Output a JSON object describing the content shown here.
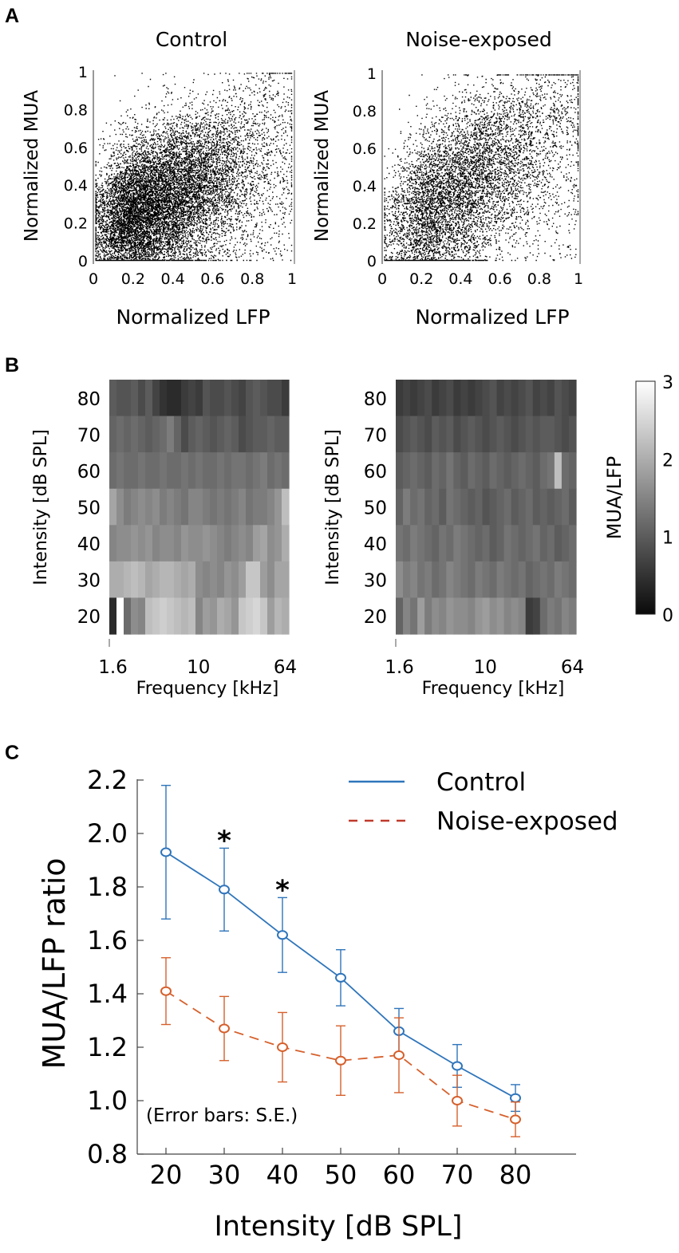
{
  "panels": {
    "a": "A",
    "b": "B",
    "c": "C"
  },
  "colors": {
    "control": "#2f75bb",
    "noise": "#d6602c",
    "noise_dashed": "#c0392b",
    "points": "#000000"
  },
  "chart_data": [
    {
      "type": "scatter",
      "title": "Control",
      "xlabel": "Normalized LFP",
      "ylabel": "Normalized MUA",
      "xlim": [
        0,
        1
      ],
      "ylim": [
        0,
        1
      ],
      "xticks": [
        "0",
        "0.2",
        "0.4",
        "0.6",
        "0.8",
        "1"
      ],
      "yticks": [
        "0",
        "0.2",
        "0.4",
        "0.6",
        "0.8",
        "1"
      ],
      "distribution": {
        "n": 12000,
        "center": [
          0.22,
          0.25
        ],
        "spread": [
          0.18,
          0.2
        ],
        "trend": 0.35
      }
    },
    {
      "type": "scatter",
      "title": "Noise-exposed",
      "xlabel": "Normalized LFP",
      "ylabel": "Normalized MUA",
      "xlim": [
        0,
        1
      ],
      "ylim": [
        0,
        1
      ],
      "xticks": [
        "0",
        "0.2",
        "0.4",
        "0.6",
        "0.8",
        "1"
      ],
      "yticks": [
        "0",
        "0.2",
        "0.4",
        "0.6",
        "0.8",
        "1"
      ],
      "distribution": {
        "n": 7000,
        "center": [
          0.28,
          0.32
        ],
        "spread": [
          0.2,
          0.22
        ],
        "trend": 0.5
      }
    },
    {
      "type": "heatmap",
      "title": "Control",
      "xlabel": "Frequency [kHz]",
      "ylabel": "Intensity [dB SPL]",
      "xticks": [
        "1.6",
        "10",
        "64"
      ],
      "yticks": [
        "80",
        "70",
        "60",
        "50",
        "40",
        "30",
        "20"
      ],
      "rows_top_to_bottom": [
        [
          1.0,
          0.9,
          0.9,
          1.0,
          0.8,
          1.0,
          0.7,
          0.5,
          0.4,
          0.4,
          0.6,
          0.7,
          0.6,
          0.9,
          0.8,
          0.8,
          0.9,
          0.8,
          0.7,
          0.9,
          1.0,
          0.9,
          0.8,
          0.8,
          0.6
        ],
        [
          1.1,
          1.2,
          1.1,
          1.2,
          1.1,
          1.0,
          1.1,
          1.2,
          1.4,
          1.1,
          0.8,
          1.0,
          1.1,
          1.0,
          0.9,
          1.0,
          1.1,
          1.0,
          0.8,
          0.9,
          1.0,
          1.0,
          1.1,
          1.0,
          1.0
        ],
        [
          1.2,
          1.3,
          1.2,
          1.2,
          1.3,
          1.2,
          1.2,
          1.3,
          1.2,
          1.2,
          1.3,
          1.2,
          1.3,
          1.2,
          1.2,
          1.3,
          1.2,
          1.3,
          1.3,
          1.2,
          1.3,
          1.4,
          1.2,
          1.3,
          1.2
        ],
        [
          1.9,
          1.6,
          1.4,
          1.5,
          1.6,
          1.5,
          1.6,
          1.4,
          1.5,
          1.4,
          1.3,
          1.5,
          1.5,
          1.4,
          1.3,
          1.4,
          1.3,
          1.4,
          1.5,
          1.3,
          1.4,
          1.4,
          1.5,
          1.7,
          2.2
        ],
        [
          1.5,
          1.6,
          1.6,
          1.7,
          1.6,
          1.7,
          1.5,
          1.6,
          1.6,
          1.5,
          1.7,
          1.6,
          1.6,
          1.7,
          1.6,
          1.5,
          1.4,
          1.5,
          1.6,
          1.5,
          1.8,
          1.9,
          1.6,
          1.7,
          2.0
        ],
        [
          2.0,
          2.0,
          2.1,
          2.2,
          2.1,
          1.9,
          2.0,
          2.1,
          2.1,
          2.0,
          1.9,
          2.0,
          1.6,
          1.5,
          1.6,
          1.5,
          1.7,
          1.6,
          1.8,
          2.3,
          2.3,
          1.8,
          1.6,
          1.9,
          1.9
        ],
        [
          0.4,
          3.0,
          1.2,
          1.6,
          1.5,
          2.2,
          2.3,
          2.4,
          2.3,
          2.2,
          2.1,
          2.2,
          1.5,
          1.8,
          1.7,
          2.0,
          1.9,
          1.7,
          2.3,
          2.4,
          2.5,
          2.3,
          1.8,
          2.1,
          2.0
        ]
      ]
    },
    {
      "type": "heatmap",
      "title": "Noise-exposed",
      "xlabel": "Frequency [kHz]",
      "ylabel": "Intensity [dB SPL]",
      "xticks": [
        "1.6",
        "10",
        "64"
      ],
      "yticks": [
        "80",
        "70",
        "60",
        "50",
        "40",
        "30",
        "20"
      ],
      "rows_top_to_bottom": [
        [
          0.6,
          0.7,
          0.6,
          0.7,
          0.8,
          0.6,
          0.7,
          0.8,
          0.6,
          0.7,
          0.6,
          0.7,
          0.8,
          0.9,
          0.7,
          0.8,
          0.7,
          0.8,
          0.9,
          0.7,
          0.8,
          0.7,
          0.9,
          0.8,
          0.7
        ],
        [
          0.8,
          0.9,
          1.0,
          0.9,
          0.8,
          1.0,
          0.9,
          1.0,
          0.8,
          0.9,
          1.0,
          0.9,
          0.8,
          0.9,
          1.0,
          0.9,
          0.8,
          0.9,
          1.0,
          0.9,
          1.0,
          1.0,
          0.9,
          0.8,
          0.9
        ],
        [
          1.0,
          1.1,
          1.2,
          1.1,
          1.0,
          1.2,
          1.1,
          1.3,
          1.1,
          1.0,
          1.2,
          1.1,
          1.0,
          1.2,
          1.1,
          1.0,
          1.1,
          1.2,
          1.1,
          1.0,
          1.2,
          1.3,
          2.2,
          1.2,
          1.1
        ],
        [
          1.1,
          1.4,
          1.2,
          1.3,
          1.1,
          1.2,
          1.0,
          1.3,
          1.2,
          1.1,
          1.0,
          1.1,
          0.9,
          1.0,
          1.1,
          1.2,
          1.0,
          1.1,
          1.2,
          1.0,
          1.1,
          1.0,
          1.1,
          1.2,
          1.0
        ],
        [
          1.3,
          1.2,
          1.4,
          1.3,
          1.2,
          1.1,
          1.3,
          1.2,
          1.4,
          1.3,
          1.2,
          1.1,
          1.2,
          1.0,
          1.1,
          1.3,
          1.2,
          1.1,
          1.2,
          1.3,
          1.1,
          1.2,
          1.0,
          1.1,
          1.2
        ],
        [
          1.6,
          1.4,
          1.5,
          1.3,
          1.4,
          1.2,
          1.3,
          1.5,
          1.4,
          1.3,
          1.2,
          1.4,
          1.3,
          1.2,
          1.4,
          1.3,
          1.2,
          1.3,
          1.1,
          1.2,
          1.3,
          1.2,
          1.4,
          1.3,
          1.2
        ],
        [
          1.1,
          1.5,
          1.3,
          1.8,
          1.4,
          1.6,
          1.5,
          1.7,
          1.6,
          1.6,
          1.5,
          1.7,
          1.8,
          1.6,
          1.7,
          1.5,
          1.6,
          1.5,
          0.6,
          0.7,
          1.2,
          1.4,
          1.3,
          1.5,
          1.4
        ]
      ]
    },
    {
      "type": "colorbar",
      "label": "MUA/LFP",
      "range": [
        0,
        3
      ],
      "ticks": [
        "0",
        "1",
        "2",
        "3"
      ]
    },
    {
      "type": "line",
      "xlabel": "Intensity [dB SPL]",
      "ylabel": "MUA/LFP ratio",
      "ylim": [
        0.8,
        2.2
      ],
      "x": [
        20,
        30,
        40,
        50,
        60,
        70,
        80
      ],
      "xticks": [
        "20",
        "30",
        "40",
        "50",
        "60",
        "70",
        "80"
      ],
      "yticks": [
        "0.8",
        "1.0",
        "1.2",
        "1.4",
        "1.6",
        "1.8",
        "2.0",
        "2.2"
      ],
      "series": [
        {
          "name": "Control",
          "values": [
            1.93,
            1.79,
            1.62,
            1.46,
            1.26,
            1.13,
            1.01
          ],
          "se": [
            0.25,
            0.155,
            0.14,
            0.105,
            0.085,
            0.08,
            0.05
          ],
          "style": "solid"
        },
        {
          "name": "Noise-exposed",
          "values": [
            1.41,
            1.27,
            1.2,
            1.15,
            1.17,
            1.0,
            0.93
          ],
          "se": [
            0.125,
            0.12,
            0.13,
            0.13,
            0.14,
            0.095,
            0.065
          ],
          "style": "dashed"
        }
      ],
      "significance": [
        {
          "x": 30,
          "label": "*"
        },
        {
          "x": 40,
          "label": "*"
        }
      ],
      "note": "(Error bars: S.E.)"
    }
  ]
}
